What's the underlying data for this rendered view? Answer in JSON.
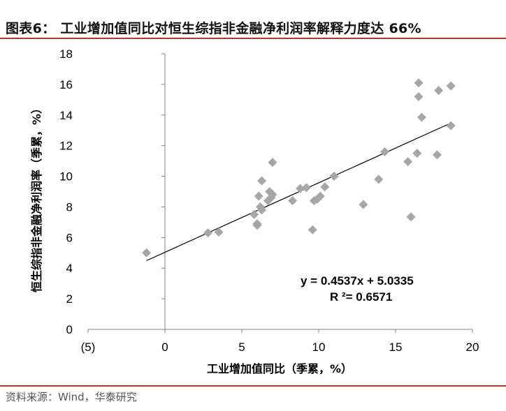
{
  "header": {
    "title": "图表6： 工业增加值同比对恒生综指非金融净利润率解释力度达 66%"
  },
  "footer": {
    "source": "资料来源：Wind，华泰研究"
  },
  "colors": {
    "rule": "#b23a2a",
    "marker": "#a6a6a6",
    "axis": "#808080",
    "trendline": "#000000"
  },
  "chart_data": {
    "type": "scatter",
    "xlabel": "工业增加值同比（季累，%）",
    "ylabel": "恒生综指非金融净利润率（季累，%）",
    "xlim": [
      -5,
      20
    ],
    "ylim": [
      0,
      18
    ],
    "x_ticks": [
      -5,
      0,
      5,
      10,
      15,
      20
    ],
    "x_tick_labels": [
      "(5)",
      "0",
      "5",
      "10",
      "15",
      "20"
    ],
    "y_ticks": [
      0,
      2,
      4,
      6,
      8,
      10,
      12,
      14,
      16,
      18
    ],
    "y_tick_labels": [
      "0",
      "2",
      "4",
      "6",
      "8",
      "10",
      "12",
      "14",
      "16",
      "18"
    ],
    "grid": false,
    "marker": "diamond",
    "points": [
      {
        "x": -1.2,
        "y": 5.0
      },
      {
        "x": 2.8,
        "y": 6.3
      },
      {
        "x": 3.5,
        "y": 6.35
      },
      {
        "x": 5.8,
        "y": 7.5
      },
      {
        "x": 6.0,
        "y": 6.8
      },
      {
        "x": 6.0,
        "y": 6.9
      },
      {
        "x": 6.1,
        "y": 8.7
      },
      {
        "x": 6.2,
        "y": 8.0
      },
      {
        "x": 6.3,
        "y": 7.8
      },
      {
        "x": 6.3,
        "y": 9.7
      },
      {
        "x": 6.7,
        "y": 8.4
      },
      {
        "x": 6.8,
        "y": 9.0
      },
      {
        "x": 6.9,
        "y": 8.6
      },
      {
        "x": 7.0,
        "y": 8.8
      },
      {
        "x": 7.0,
        "y": 10.9
      },
      {
        "x": 8.3,
        "y": 8.4
      },
      {
        "x": 8.8,
        "y": 9.2
      },
      {
        "x": 9.2,
        "y": 9.25
      },
      {
        "x": 9.6,
        "y": 6.5
      },
      {
        "x": 9.7,
        "y": 8.4
      },
      {
        "x": 9.9,
        "y": 8.5
      },
      {
        "x": 10.1,
        "y": 8.7
      },
      {
        "x": 10.4,
        "y": 9.3
      },
      {
        "x": 11.0,
        "y": 10.0
      },
      {
        "x": 12.9,
        "y": 8.15
      },
      {
        "x": 13.9,
        "y": 9.8
      },
      {
        "x": 14.3,
        "y": 11.6
      },
      {
        "x": 15.8,
        "y": 10.95
      },
      {
        "x": 16.0,
        "y": 7.35
      },
      {
        "x": 16.4,
        "y": 11.5
      },
      {
        "x": 16.5,
        "y": 15.2
      },
      {
        "x": 16.5,
        "y": 16.1
      },
      {
        "x": 16.7,
        "y": 13.85
      },
      {
        "x": 17.7,
        "y": 11.4
      },
      {
        "x": 17.8,
        "y": 15.6
      },
      {
        "x": 18.6,
        "y": 15.9
      },
      {
        "x": 18.6,
        "y": 13.3
      }
    ],
    "trendline": {
      "slope": 0.4537,
      "intercept": 5.0335,
      "x_range": [
        -1.2,
        18.6
      ]
    },
    "annotations": {
      "equation": "y = 0.4537x + 5.0335",
      "r2_text": "R ²= 0.6571"
    }
  }
}
